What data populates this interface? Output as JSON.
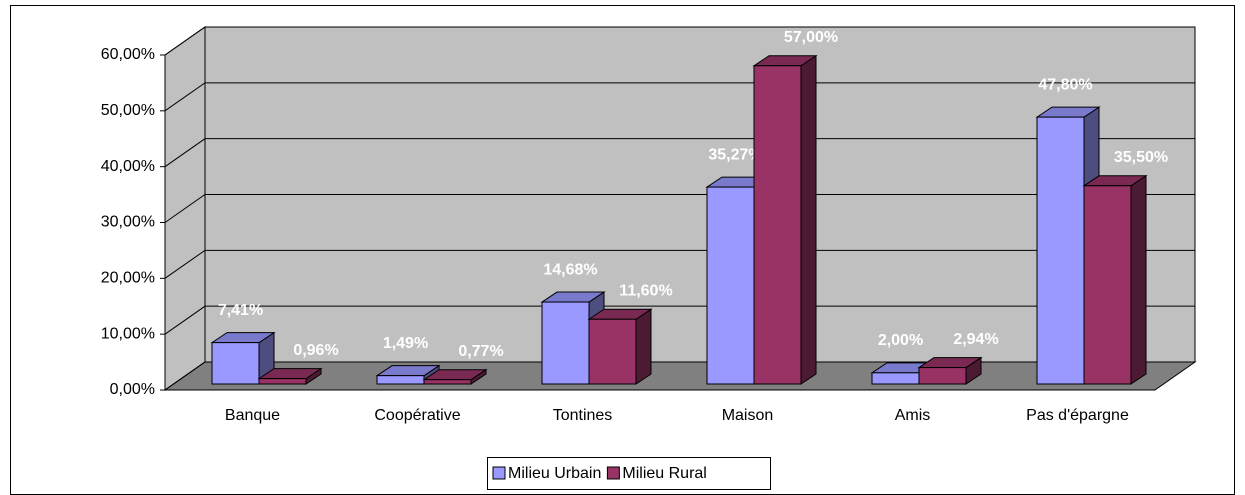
{
  "chart_data": {
    "type": "bar3d",
    "categories": [
      "Banque",
      "Coopérative",
      "Tontines",
      "Maison",
      "Amis",
      "Pas d'épargne"
    ],
    "series": [
      {
        "name": "Milieu Urbain",
        "color": "#9999ff",
        "values": [
          7.41,
          1.49,
          14.68,
          35.27,
          2.0,
          47.8
        ],
        "value_labels": [
          "7,41%",
          "1,49%",
          "14,68%",
          "35,27%",
          "2,00%",
          "47,80%"
        ]
      },
      {
        "name": "Milieu Rural",
        "color": "#993366",
        "values": [
          0.96,
          0.77,
          11.6,
          57.0,
          2.94,
          35.5
        ],
        "value_labels": [
          "0,96%",
          "0,77%",
          "11,60%",
          "57,00%",
          "2,94%",
          "35,50%"
        ]
      }
    ],
    "ylim": [
      0,
      60
    ],
    "yticks": [
      {
        "value": 0,
        "label": "0,00%"
      },
      {
        "value": 10,
        "label": "10,00%"
      },
      {
        "value": 20,
        "label": "20,00%"
      },
      {
        "value": 30,
        "label": "30,00%"
      },
      {
        "value": 40,
        "label": "40,00%"
      },
      {
        "value": 50,
        "label": "50,00%"
      },
      {
        "value": 60,
        "label": "60,00%"
      }
    ],
    "grid": true,
    "legend": "bottom"
  }
}
